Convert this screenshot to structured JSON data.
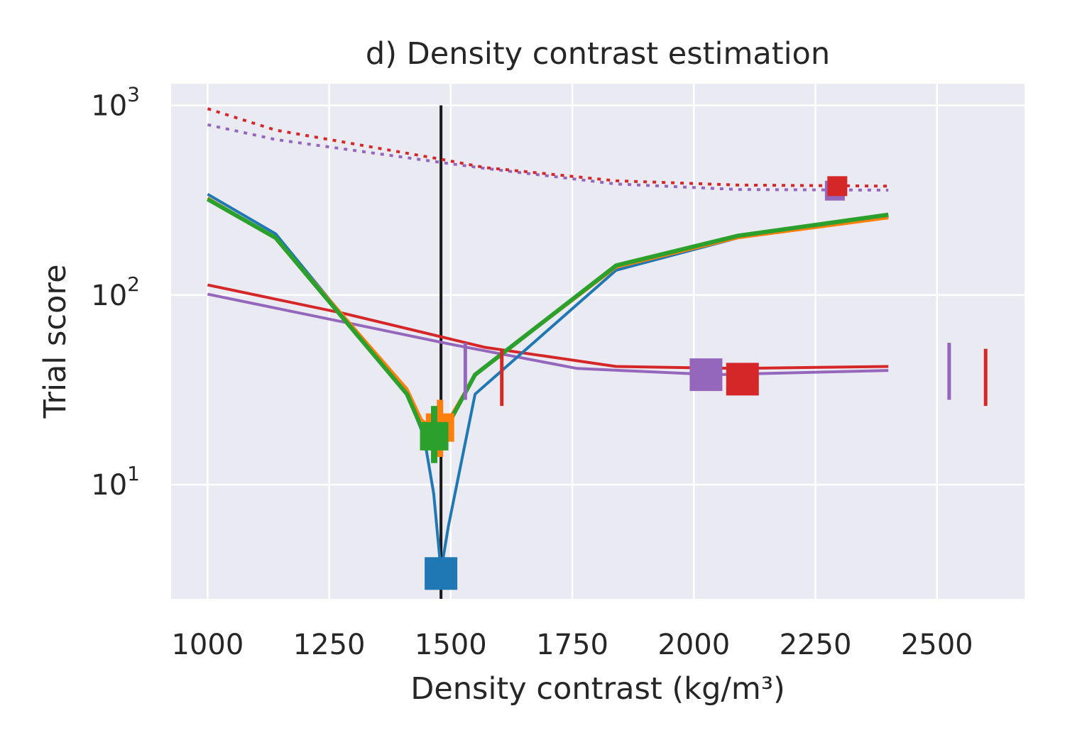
{
  "chart_data": {
    "type": "line",
    "title": "d) Density contrast estimation",
    "xlabel": "Density contrast (kg/m³)",
    "ylabel": "Trial score",
    "xlim": [
      925,
      2680
    ],
    "ylim": [
      2.5,
      1300
    ],
    "yscale": "log",
    "grid": true,
    "background": "#eaeaf2",
    "xticks": [
      {
        "value": 1000,
        "label": "1000"
      },
      {
        "value": 1250,
        "label": "1250"
      },
      {
        "value": 1500,
        "label": "1500"
      },
      {
        "value": 1750,
        "label": "1750"
      },
      {
        "value": 2000,
        "label": "2000"
      },
      {
        "value": 2250,
        "label": "2250"
      },
      {
        "value": 2500,
        "label": "2500"
      }
    ],
    "yticks": [
      {
        "value": 10,
        "base": "10",
        "exp": "1"
      },
      {
        "value": 100,
        "base": "10",
        "exp": "2"
      },
      {
        "value": 1000,
        "base": "10",
        "exp": "3"
      }
    ],
    "true_value": {
      "x": 1480,
      "color": "#1a1a1a"
    },
    "series": [
      {
        "color": "#1f77b4",
        "dash": "solid",
        "width": 4,
        "x": [
          1000,
          1140,
          1410,
          1445,
          1465,
          1480,
          1495,
          1550,
          1840,
          2090,
          2400
        ],
        "y": [
          340,
          210,
          30,
          18,
          9,
          3.5,
          6,
          30,
          135,
          200,
          260
        ],
        "best": {
          "x": 1480,
          "y": 3.4,
          "size": 46
        },
        "bar": null
      },
      {
        "color": "#ff7f0e",
        "dash": "solid",
        "width": 4,
        "x": [
          1000,
          1140,
          1410,
          1440,
          1460,
          1480,
          1500,
          1550,
          1840,
          2090,
          2400
        ],
        "y": [
          325,
          200,
          32,
          22,
          20,
          20,
          23,
          38,
          140,
          200,
          255
        ],
        "best": {
          "x": 1478,
          "y": 20,
          "size": 40
        },
        "bar": {
          "x": 1478,
          "y0": 14,
          "y1": 28,
          "width": 9
        }
      },
      {
        "color": "#2ca02c",
        "dash": "solid",
        "width": 6,
        "x": [
          1000,
          1140,
          1410,
          1440,
          1460,
          1480,
          1500,
          1550,
          1840,
          2090,
          2400
        ],
        "y": [
          320,
          200,
          30,
          20,
          18,
          18,
          22,
          38,
          143,
          205,
          265
        ],
        "best": {
          "x": 1466,
          "y": 18,
          "size": 40
        },
        "bar": {
          "x": 1466,
          "y0": 13,
          "y1": 26,
          "width": 9
        }
      },
      {
        "color": "#d62728",
        "dash": "solid",
        "width": 4,
        "x": [
          1000,
          1280,
          1570,
          1840,
          2090,
          2400
        ],
        "y": [
          113,
          80,
          53,
          42,
          41,
          42
        ],
        "best": {
          "x": 2100,
          "y": 36,
          "size": 46
        },
        "bar": {
          "x": 1605,
          "y0": 26,
          "y1": 52,
          "width": 5
        }
      },
      {
        "color": "#9467bd",
        "dash": "solid",
        "width": 4,
        "x": [
          1000,
          1280,
          1500,
          1760,
          2040,
          2400
        ],
        "y": [
          101,
          72,
          55,
          41,
          38,
          40
        ],
        "best": {
          "x": 2025,
          "y": 38,
          "size": 46
        },
        "bar": {
          "x": 1530,
          "y0": 28,
          "y1": 56,
          "width": 5
        }
      },
      {
        "color": "#d62728",
        "dash": "dotted",
        "width": 4,
        "x": [
          1000,
          1140,
          1480,
          1570,
          1840,
          2090,
          2400
        ],
        "y": [
          960,
          740,
          520,
          470,
          400,
          380,
          375
        ],
        "best": {
          "x": 2295,
          "y": 375,
          "size": 28
        },
        "bar": {
          "x": 2600,
          "y0": 26,
          "y1": 52,
          "width": 5
        }
      },
      {
        "color": "#9467bd",
        "dash": "dotted",
        "width": 4,
        "x": [
          1000,
          1140,
          1480,
          1570,
          1840,
          2090,
          2400
        ],
        "y": [
          790,
          660,
          500,
          465,
          385,
          360,
          357
        ],
        "best": {
          "x": 2290,
          "y": 355,
          "size": 28
        },
        "bar": {
          "x": 2525,
          "y0": 28,
          "y1": 56,
          "width": 5
        }
      }
    ]
  }
}
